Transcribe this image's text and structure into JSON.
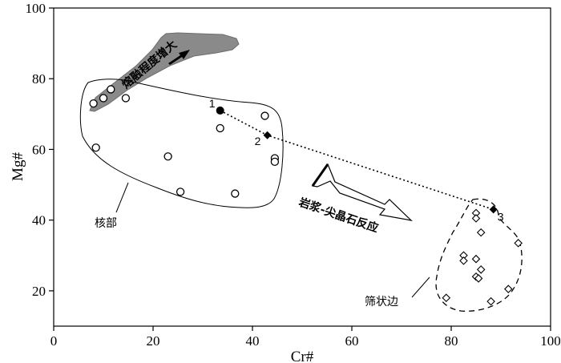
{
  "chart_data": {
    "type": "scatter",
    "xlabel": "Cr#",
    "ylabel": "Mg#",
    "xlim": [
      0,
      100
    ],
    "ylim": [
      10,
      100
    ],
    "xticks": [
      0,
      20,
      40,
      60,
      80,
      100
    ],
    "yticks": [
      20,
      40,
      60,
      80,
      100
    ],
    "grid": false,
    "series": [
      {
        "marker": "open-circle",
        "points": [
          [
            8,
            73
          ],
          [
            10,
            74.5
          ],
          [
            11.5,
            77
          ],
          [
            14.5,
            74.5
          ],
          [
            8.5,
            60.5
          ],
          [
            23,
            58
          ],
          [
            25.5,
            48
          ],
          [
            33.5,
            66
          ],
          [
            36.5,
            47.5
          ],
          [
            42.5,
            69.5
          ],
          [
            44.5,
            57.5
          ],
          [
            44.5,
            56.5
          ]
        ]
      },
      {
        "marker": "open-diamond",
        "points": [
          [
            85,
            42
          ],
          [
            85,
            40.5
          ],
          [
            86,
            36.5
          ],
          [
            93.5,
            33.5
          ],
          [
            82.5,
            30
          ],
          [
            82.5,
            28.5
          ],
          [
            85,
            29
          ],
          [
            86,
            26
          ],
          [
            85,
            24
          ],
          [
            85.5,
            23.5
          ],
          [
            91.5,
            20.5
          ],
          [
            79,
            18
          ],
          [
            88,
            17
          ]
        ]
      }
    ],
    "path_points": [
      {
        "label": "1",
        "x": 33.5,
        "y": 71,
        "marker": "filled-circle"
      },
      {
        "label": "2",
        "x": 43,
        "y": 64,
        "marker": "filled-diamond"
      },
      {
        "label": "3",
        "x": 88.5,
        "y": 43,
        "marker": "filled-diamond"
      }
    ],
    "annotations": {
      "melting_trend": "熔融程度增大",
      "reaction": "岩浆-尖晶石反应",
      "core": "核部",
      "sieve_rim": "筛状边"
    }
  }
}
